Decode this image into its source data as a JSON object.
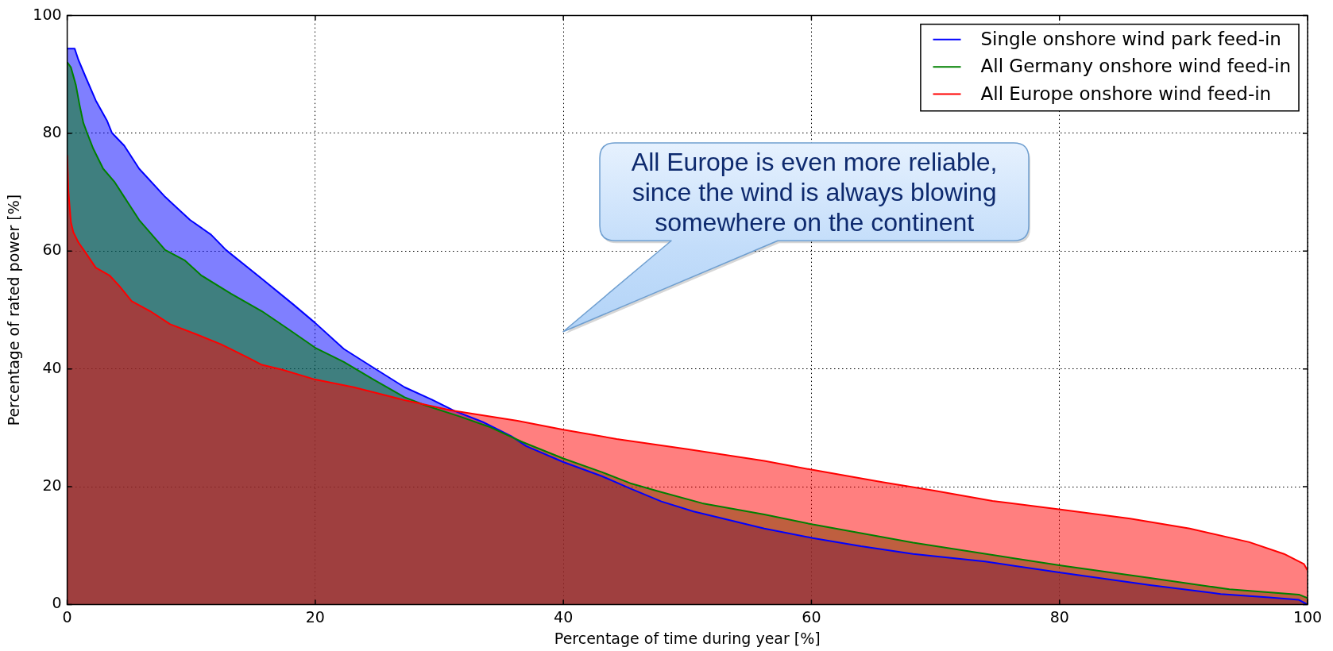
{
  "chart_data": {
    "type": "area",
    "xlabel": "Percentage of time during year [%]",
    "ylabel": "Percentage of rated power [%]",
    "xlim": [
      0,
      100
    ],
    "ylim": [
      0,
      100
    ],
    "xticks": [
      0,
      20,
      40,
      60,
      80,
      100
    ],
    "yticks": [
      0,
      20,
      40,
      60,
      80,
      100
    ],
    "grid": true,
    "legend": "top right",
    "annotations": [
      "All Europe is even more reliable, since the wind is always blowing somewhere on the continent"
    ],
    "series": [
      {
        "name": "Single onshore wind park feed-in",
        "color": "#0000ff",
        "x": [
          0,
          0.6,
          0.9,
          1.5,
          2.3,
          3.2,
          3.6,
          4.6,
          5.8,
          7.9,
          9.9,
          11.6,
          12.8,
          15.7,
          18.2,
          20,
          22.3,
          24.7,
          27.2,
          29.4,
          31.2,
          33.5,
          35.8,
          37,
          40,
          43.1,
          45.4,
          47.9,
          50.5,
          52.3,
          56.2,
          60.1,
          64,
          68.2,
          74,
          80.2,
          87.3,
          93,
          96.9,
          99.3,
          100
        ],
        "values": [
          94.4,
          94.4,
          92.5,
          89.5,
          85.6,
          82.2,
          80.1,
          77.9,
          74,
          69.2,
          65.3,
          62.8,
          60.2,
          55.3,
          51,
          47.8,
          43.4,
          40.2,
          36.9,
          34.8,
          32.9,
          31,
          28.6,
          26.9,
          24.2,
          21.8,
          19.7,
          17.5,
          15.8,
          14.9,
          12.9,
          11.3,
          9.9,
          8.6,
          7.3,
          5.4,
          3.3,
          1.8,
          1.2,
          0.8,
          0
        ]
      },
      {
        "name": "All Germany onshore wind feed-in",
        "color": "#008000",
        "x": [
          0,
          0.3,
          0.7,
          1,
          1.3,
          1.6,
          2.1,
          2.9,
          3.8,
          4.6,
          5.8,
          7.9,
          9.5,
          10.8,
          13.2,
          15.7,
          17.8,
          20,
          22.3,
          24.7,
          27.2,
          28.9,
          31.7,
          34,
          36.7,
          40,
          43.1,
          45.4,
          47.7,
          51.2,
          56.2,
          60.1,
          68.2,
          80.2,
          87.3,
          93.7,
          99.3,
          100
        ],
        "values": [
          92.1,
          91.2,
          88.2,
          84.8,
          81.8,
          80.1,
          77.4,
          74,
          71.8,
          69.2,
          65.3,
          60.2,
          58.4,
          55.9,
          52.8,
          49.8,
          46.8,
          43.6,
          41.2,
          38.2,
          35.2,
          33.8,
          31.9,
          30.2,
          27.6,
          24.8,
          22.5,
          20.6,
          19.2,
          17.2,
          15.3,
          13.6,
          10.5,
          6.6,
          4.5,
          2.6,
          1.7,
          1.1
        ]
      },
      {
        "name": "All Europe onshore wind feed-in",
        "color": "#ff0000",
        "x": [
          0,
          0.1,
          0.3,
          0.5,
          0.9,
          1.5,
          2.3,
          3.4,
          4.2,
          5.2,
          6.7,
          8.3,
          10.4,
          12.4,
          14.5,
          15.7,
          17.3,
          20,
          23.1,
          27.2,
          30.9,
          36.3,
          40,
          44.3,
          50,
          56.2,
          60,
          65.7,
          70,
          74.6,
          80.2,
          85.7,
          90.5,
          95.3,
          98.1,
          99.7,
          100
        ],
        "values": [
          76.3,
          70.1,
          64.9,
          63.2,
          61.5,
          59.7,
          57.2,
          55.9,
          54.1,
          51.5,
          49.8,
          47.6,
          45.9,
          44.2,
          42,
          40.7,
          39.9,
          38.2,
          36.9,
          34.7,
          33,
          31.2,
          29.7,
          28.1,
          26.4,
          24.4,
          22.9,
          20.8,
          19.3,
          17.6,
          16.1,
          14.6,
          12.9,
          10.6,
          8.6,
          6.9,
          5.8
        ]
      }
    ]
  }
}
